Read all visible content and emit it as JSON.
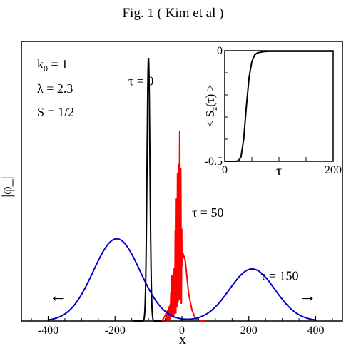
{
  "figure_title": "Fig. 1 ( Kim et al )",
  "chart_data": [
    {
      "type": "line",
      "title": "",
      "xlabel": "x",
      "ylabel": "|φ_|",
      "xlim": [
        -480,
        480
      ],
      "ylim": [
        0,
        1.02
      ],
      "x_ticks": [
        -400,
        -200,
        0,
        200,
        400
      ],
      "x_tick_labels": [
        "-400",
        "-200",
        "0",
        "200",
        "400"
      ],
      "grid": false,
      "parameters": [
        "k",
        "0",
        " = 1",
        "λ = 2.3",
        "S = 1/2"
      ],
      "series": [
        {
          "name": "τ = 0",
          "color": "#000000",
          "model": "gaussian",
          "center": -100,
          "width": 4.3,
          "amplitude": 0.96,
          "x": [
            -130,
            -120,
            -115,
            -110,
            -108,
            -106,
            -104,
            -102,
            -100,
            -98,
            -96,
            -94,
            -92,
            -90,
            -85,
            -80,
            -70
          ],
          "y": [
            0.0,
            0.0,
            0.01,
            0.07,
            0.16,
            0.33,
            0.56,
            0.86,
            0.96,
            0.86,
            0.56,
            0.33,
            0.16,
            0.07,
            0.01,
            0.0,
            0.0
          ]
        },
        {
          "name": "τ = 50",
          "color": "#ff0000",
          "model": "oscillating",
          "x": [
            -60,
            -50,
            -40,
            -35,
            -30,
            -25,
            -20,
            -18,
            -16,
            -14,
            -12,
            -10,
            -8,
            -6,
            -5,
            -3,
            -1,
            0,
            2,
            5,
            10,
            15,
            20,
            30,
            40,
            50,
            60,
            70
          ],
          "y": [
            0.0,
            0.02,
            0.05,
            0.06,
            0.17,
            0.1,
            0.34,
            0.25,
            0.51,
            0.43,
            0.7,
            0.56,
            0.78,
            0.66,
            0.8,
            0.5,
            0.63,
            0.2,
            0.23,
            0.24,
            0.22,
            0.16,
            0.1,
            0.04,
            0.01,
            0.0,
            0.0,
            0.0
          ]
        },
        {
          "name": "τ = 150",
          "color": "#0000cc",
          "model": "double-gaussian",
          "centers": [
            -195,
            210
          ],
          "amplitudes": [
            0.3,
            0.19
          ],
          "sigmas": [
            70,
            68
          ],
          "x": [
            -400,
            -350,
            -300,
            -250,
            -195,
            -150,
            -100,
            -50,
            0,
            50,
            100,
            150,
            210,
            260,
            300,
            350,
            400
          ],
          "y": [
            0.0,
            0.03,
            0.1,
            0.22,
            0.3,
            0.24,
            0.11,
            0.03,
            0.01,
            0.03,
            0.07,
            0.13,
            0.19,
            0.15,
            0.08,
            0.02,
            0.0
          ]
        }
      ],
      "annotations": [
        {
          "text": "τ = 0",
          "x": -160,
          "y": 0.86
        },
        {
          "text": "τ = 50",
          "x": 30,
          "y": 0.38
        },
        {
          "text": "τ = 150",
          "x": 235,
          "y": 0.15
        },
        {
          "text": "←",
          "x": -370,
          "y": 0.07
        },
        {
          "text": "→",
          "x": 375,
          "y": 0.07
        }
      ]
    },
    {
      "type": "line",
      "title": "",
      "xlabel": "τ",
      "ylabel": "< S_z(τ) >",
      "xlim": [
        0,
        200
      ],
      "ylim": [
        -0.5,
        0
      ],
      "x_ticks": [
        0,
        200
      ],
      "x_tick_labels": [
        "0",
        "200"
      ],
      "y_ticks": [
        -0.5,
        0
      ],
      "y_tick_labels": [
        "-0.5",
        "0"
      ],
      "grid": false,
      "series": [
        {
          "color": "#000000",
          "x": [
            0,
            20,
            25,
            30,
            35,
            40,
            45,
            50,
            55,
            60,
            70,
            80,
            100,
            200
          ],
          "y": [
            -0.5,
            -0.5,
            -0.498,
            -0.48,
            -0.4,
            -0.25,
            -0.12,
            -0.05,
            -0.02,
            -0.01,
            -0.005,
            -0.003,
            -0.003,
            -0.003
          ]
        }
      ]
    }
  ]
}
